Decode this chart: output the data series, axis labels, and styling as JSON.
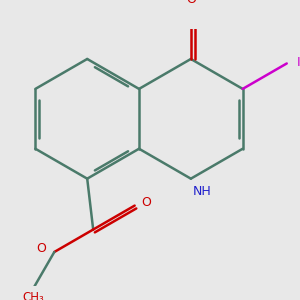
{
  "background_color": "#e8e8e8",
  "bond_color": "#4a7a6a",
  "bond_width": 1.8,
  "dbo": 0.055,
  "atom_colors": {
    "N": "#2020cc",
    "O": "#cc0000",
    "I": "#cc00cc",
    "C": "#4a7a6a"
  },
  "font_size": 9.0,
  "figsize": [
    3.0,
    3.0
  ],
  "dpi": 100
}
